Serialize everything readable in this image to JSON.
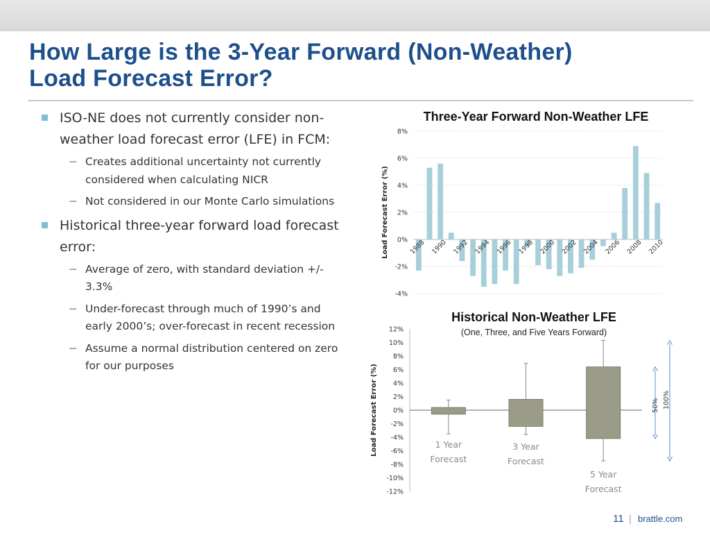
{
  "slide": {
    "title_line1": "How Large is the 3-Year Forward (Non-Weather)",
    "title_line2": "Load Forecast Error?",
    "page_number": "11",
    "separator": "|",
    "site": "brattle.com"
  },
  "bullets": [
    {
      "text": "ISO-NE does not currently consider non-weather load forecast error (LFE) in FCM:",
      "sub": [
        "Creates additional uncertainty not currently considered when calculating NICR",
        "Not considered in our Monte Carlo simulations"
      ]
    },
    {
      "text": "Historical three-year forward load forecast error:",
      "sub": [
        "Average of zero, with standard deviation +/- 3.3%",
        "Under-forecast through much of 1990’s and early 2000’s; over-forecast in recent recession",
        "Assume a normal distribution centered on zero for our purposes"
      ]
    }
  ],
  "colors": {
    "title_blue": "#1d4f8c",
    "bar_blue": "#a6cfd9",
    "box_olive": "#9b9c88",
    "bullet_marker": "#7fbdd3",
    "arrow_blue": "#5b8ec9"
  },
  "chart_data": [
    {
      "type": "bar",
      "title": "Three-Year Forward Non-Weather LFE",
      "ylabel": "Load Forecast Error (%)",
      "xlabel": "",
      "ylim": [
        -4,
        8
      ],
      "y_ticks": [
        "-4%",
        "-2%",
        "0%",
        "2%",
        "4%",
        "6%",
        "8%"
      ],
      "tick_labels": [
        "1988",
        "1990",
        "1992",
        "1994",
        "1996",
        "1998",
        "2000",
        "2002",
        "2004",
        "2006",
        "2008",
        "2010"
      ],
      "grid": true,
      "categories": [
        "1988",
        "1989",
        "1990",
        "1991",
        "1992",
        "1993",
        "1994",
        "1995",
        "1996",
        "1997",
        "1998",
        "1999",
        "2000",
        "2001",
        "2002",
        "2003",
        "2004",
        "2005",
        "2006",
        "2007",
        "2008",
        "2009",
        "2010"
      ],
      "values": [
        -2.3,
        5.3,
        5.6,
        0.5,
        -1.6,
        -2.7,
        -3.5,
        -3.3,
        -2.3,
        -3.3,
        -0.5,
        -1.9,
        -2.2,
        -2.7,
        -2.5,
        -2.1,
        -1.5,
        -0.5,
        0.5,
        3.8,
        6.9,
        4.9,
        2.7
      ]
    },
    {
      "type": "box",
      "title": "Historical Non-Weather LFE",
      "subtitle": "(One, Three, and Five Years Forward)",
      "ylabel": "Load Forecast Error (%)",
      "ylim": [
        -12,
        12
      ],
      "y_ticks": [
        "-12%",
        "-10%",
        "-8%",
        "-6%",
        "-4%",
        "-2%",
        "0%",
        "2%",
        "4%",
        "6%",
        "8%",
        "10%",
        "12%"
      ],
      "categories": [
        [
          "1 Year",
          "Forecast"
        ],
        [
          "3 Year",
          "Forecast"
        ],
        [
          "5 Year",
          "Forecast"
        ]
      ],
      "boxes": [
        {
          "low": -0.6,
          "high": 0.4,
          "whisker_low": -3.5,
          "whisker_high": 1.5
        },
        {
          "low": -2.4,
          "high": 1.6,
          "whisker_low": -3.6,
          "whisker_high": 6.9
        },
        {
          "low": -4.2,
          "high": 6.4,
          "whisker_low": -7.5,
          "whisker_high": 10.3
        }
      ],
      "annotations": [
        "50%",
        "100%"
      ]
    }
  ]
}
